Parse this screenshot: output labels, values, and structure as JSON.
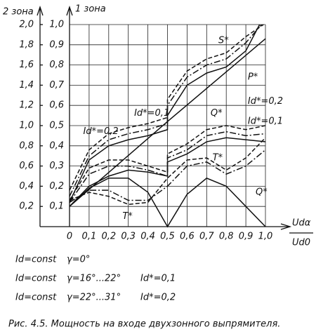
{
  "chart_data": {
    "type": "line",
    "y2_title": "2 зона",
    "y_title": "1 зона",
    "x_title_top": "Udα",
    "x_title_bottom": "Ud0",
    "xlim": [
      0,
      1
    ],
    "ylim": [
      0,
      1
    ],
    "y2lim": [
      0,
      2
    ],
    "grid": true,
    "xticks": [
      0,
      {
        "value": 0.1,
        "label": "0,1"
      },
      {
        "value": 0.2,
        "label": "0,2"
      },
      {
        "value": 0.3,
        "label": "0,3"
      },
      {
        "value": 0.4,
        "label": "0,4"
      },
      {
        "value": 0.5,
        "label": "0,5"
      },
      {
        "value": 0.6,
        "label": "0,6"
      },
      {
        "value": 0.7,
        "label": "0,7"
      },
      {
        "value": 0.8,
        "label": "0,8"
      },
      {
        "value": 0.9,
        "label": "0,9"
      },
      {
        "value": 1.0,
        "label": "1,0"
      }
    ],
    "yticks": [
      {
        "value": 0.1,
        "label": "0,1"
      },
      {
        "value": 0.2,
        "label": "0,2"
      },
      {
        "value": 0.3,
        "label": "0,3"
      },
      {
        "value": 0.4,
        "label": "0,4"
      },
      {
        "value": 0.5,
        "label": "0,5"
      },
      {
        "value": 0.6,
        "label": "0,6"
      },
      {
        "value": 0.7,
        "label": "0,7"
      },
      {
        "value": 0.8,
        "label": "0,8"
      },
      {
        "value": 0.9,
        "label": "0,9"
      },
      {
        "value": 1.0,
        "label": "1,0"
      }
    ],
    "y2ticks": [
      {
        "value": 0.2,
        "label": "0,2"
      },
      {
        "value": 0.4,
        "label": "0,4"
      },
      {
        "value": 0.6,
        "label": "0,6"
      },
      {
        "value": 0.8,
        "label": "0,8"
      },
      {
        "value": 1.0,
        "label": "1,0"
      },
      {
        "value": 1.2,
        "label": "1,2"
      },
      {
        "value": 1.4,
        "label": "1,4"
      },
      {
        "value": 1.6,
        "label": "1,6"
      },
      {
        "value": 1.8,
        "label": "1,8"
      },
      {
        "value": 2.0,
        "label": "2,0"
      }
    ],
    "series": [
      {
        "style": "solid",
        "color": "#111111",
        "x": [
          0,
          0.5,
          1.0
        ],
        "values": [
          0.1,
          0.52,
          0.93
        ]
      },
      {
        "style": "solid",
        "color": "#111111",
        "x": [
          0,
          0.1,
          0.2,
          0.3,
          0.4,
          0.5,
          0.5,
          0.6,
          0.7,
          0.8,
          0.9,
          0.97
        ],
        "values": [
          0.12,
          0.33,
          0.4,
          0.43,
          0.45,
          0.48,
          0.55,
          0.7,
          0.76,
          0.79,
          0.87,
          1.0
        ]
      },
      {
        "style": "solid",
        "color": "#111111",
        "x": [
          0,
          0.1,
          0.2,
          0.3,
          0.4,
          0.5,
          0.5,
          0.6,
          0.7,
          0.8,
          0.9,
          1.0
        ],
        "values": [
          0.1,
          0.2,
          0.25,
          0.28,
          0.27,
          0.25,
          0.32,
          0.36,
          0.42,
          0.44,
          0.43,
          0.42
        ]
      },
      {
        "style": "solid",
        "color": "#111111",
        "x": [
          0,
          0.1,
          0.2,
          0.3,
          0.4,
          0.5,
          0.6,
          0.7,
          0.8,
          0.9,
          1.0
        ],
        "values": [
          0.1,
          0.19,
          0.24,
          0.24,
          0.17,
          0.0,
          0.16,
          0.24,
          0.2,
          0.1,
          0.0
        ]
      },
      {
        "style": "dashdot",
        "color": "#111111",
        "x": [
          0,
          0.1,
          0.2,
          0.3,
          0.4,
          0.5,
          0.5,
          0.6,
          0.7,
          0.8,
          0.9,
          0.98
        ],
        "values": [
          0.15,
          0.35,
          0.43,
          0.46,
          0.48,
          0.51,
          0.6,
          0.74,
          0.8,
          0.83,
          0.91,
          1.0
        ]
      },
      {
        "style": "dashdot",
        "color": "#111111",
        "x": [
          0,
          0.1,
          0.2,
          0.3,
          0.4,
          0.5,
          0.5,
          0.6,
          0.7,
          0.8,
          0.9,
          1.0
        ],
        "values": [
          0.12,
          0.26,
          0.3,
          0.3,
          0.28,
          0.25,
          0.34,
          0.38,
          0.45,
          0.47,
          0.45,
          0.46
        ]
      },
      {
        "style": "dashdot",
        "color": "#111111",
        "x": [
          0,
          0.1,
          0.2,
          0.3,
          0.4,
          0.5,
          0.6,
          0.7,
          0.8,
          0.9,
          1.0
        ],
        "values": [
          0.12,
          0.18,
          0.18,
          0.13,
          0.13,
          0.2,
          0.3,
          0.32,
          0.26,
          0.3,
          0.38
        ]
      },
      {
        "style": "dashed",
        "color": "#111111",
        "x": [
          0,
          0.1,
          0.2,
          0.3,
          0.4,
          0.5,
          0.5,
          0.6,
          0.7,
          0.8,
          0.9,
          0.99
        ],
        "values": [
          0.18,
          0.38,
          0.46,
          0.49,
          0.51,
          0.54,
          0.63,
          0.77,
          0.83,
          0.86,
          0.94,
          1.0
        ]
      },
      {
        "style": "dashed",
        "color": "#111111",
        "x": [
          0,
          0.1,
          0.2,
          0.3,
          0.4,
          0.5,
          0.5,
          0.6,
          0.7,
          0.8,
          0.9,
          1.0
        ],
        "values": [
          0.13,
          0.29,
          0.33,
          0.33,
          0.3,
          0.27,
          0.36,
          0.41,
          0.48,
          0.5,
          0.48,
          0.5
        ]
      },
      {
        "style": "dashed",
        "color": "#111111",
        "x": [
          0,
          0.1,
          0.2,
          0.3,
          0.4,
          0.5,
          0.6,
          0.7,
          0.8,
          0.9,
          1.0
        ],
        "values": [
          0.13,
          0.17,
          0.15,
          0.11,
          0.12,
          0.24,
          0.33,
          0.34,
          0.28,
          0.34,
          0.44
        ]
      }
    ],
    "annotations": [
      {
        "text": "S*",
        "x": 0.76,
        "y": 0.92
      },
      {
        "text": "P*",
        "x": 0.91,
        "y": 0.74
      },
      {
        "text": "Q*",
        "x": 0.72,
        "y": 0.56
      },
      {
        "text": "T*",
        "x": 0.73,
        "y": 0.34
      },
      {
        "text": "Q*",
        "x": 0.95,
        "y": 0.17
      },
      {
        "text": "T*",
        "x": 0.27,
        "y": 0.05
      },
      {
        "text": "Id*=0,1",
        "x": 0.33,
        "y": 0.56
      },
      {
        "text": "Id*=0,2",
        "x": 0.07,
        "y": 0.47
      },
      {
        "text": "Id*=0,2",
        "x": 0.91,
        "y": 0.62
      },
      {
        "text": "Id*=0,1",
        "x": 0.91,
        "y": 0.52
      }
    ],
    "legend": [
      [
        "Id=const",
        "γ=0°"
      ],
      [
        "Id=const",
        "γ=16°...22°",
        "Id*=0,1"
      ],
      [
        "Id=const",
        "γ=22°...31°",
        "Id*=0,2"
      ]
    ],
    "caption": "Рис. 4.5. Мощность на входе двухзонного выпрямителя."
  }
}
